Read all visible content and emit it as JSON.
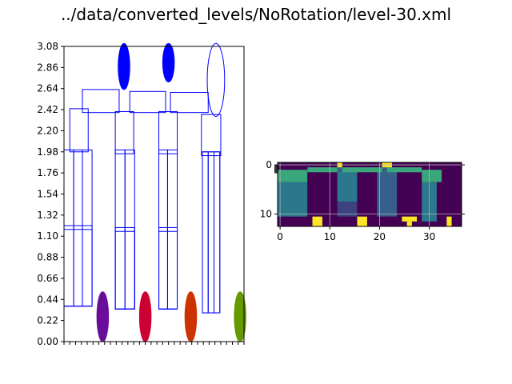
{
  "title": "../data/converted_levels/NoRotation/level-30.xml",
  "chart_data": [
    {
      "type": "scatter",
      "subtype": "level-layout",
      "title": "",
      "xlabel": "",
      "ylabel": "",
      "xlim": [
        0,
        1.86
      ],
      "ylim": [
        0,
        3.08
      ],
      "grid": false,
      "ytick_labels": [
        "0.00",
        "0.22",
        "0.44",
        "0.66",
        "0.88",
        "1.10",
        "1.32",
        "1.54",
        "1.76",
        "1.98",
        "2.20",
        "2.42",
        "2.64",
        "2.86",
        "3.08"
      ],
      "xtick_note": "x tick labels overlap and are illegible",
      "rectangles": [
        {
          "x0": 0.0,
          "y0": 0.37,
          "x1": 0.29,
          "y1": 1.21
        },
        {
          "x0": 0.0,
          "y0": 0.37,
          "x1": 0.29,
          "y1": 1.17
        },
        {
          "x0": 0.0,
          "y0": 0.37,
          "x1": 0.1,
          "y1": 2.0
        },
        {
          "x0": 0.1,
          "y0": 0.37,
          "x1": 0.19,
          "y1": 2.0
        },
        {
          "x0": 0.19,
          "y0": 0.37,
          "x1": 0.29,
          "y1": 2.0
        },
        {
          "x0": 0.06,
          "y0": 1.98,
          "x1": 0.25,
          "y1": 2.43
        },
        {
          "x0": 0.19,
          "y0": 2.39,
          "x1": 0.57,
          "y1": 2.63
        },
        {
          "x0": 0.53,
          "y0": 0.34,
          "x1": 0.73,
          "y1": 1.19
        },
        {
          "x0": 0.53,
          "y0": 0.34,
          "x1": 0.73,
          "y1": 1.15
        },
        {
          "x0": 0.53,
          "y0": 0.34,
          "x1": 0.63,
          "y1": 2.0
        },
        {
          "x0": 0.63,
          "y0": 0.34,
          "x1": 0.73,
          "y1": 2.0
        },
        {
          "x0": 0.53,
          "y0": 1.96,
          "x1": 0.72,
          "y1": 2.4
        },
        {
          "x0": 0.68,
          "y0": 2.39,
          "x1": 1.05,
          "y1": 2.61
        },
        {
          "x0": 0.98,
          "y0": 0.34,
          "x1": 1.17,
          "y1": 1.19
        },
        {
          "x0": 0.98,
          "y0": 0.34,
          "x1": 1.17,
          "y1": 1.15
        },
        {
          "x0": 0.98,
          "y0": 0.34,
          "x1": 1.07,
          "y1": 2.0
        },
        {
          "x0": 1.07,
          "y0": 0.34,
          "x1": 1.17,
          "y1": 2.0
        },
        {
          "x0": 0.98,
          "y0": 1.96,
          "x1": 1.17,
          "y1": 2.4
        },
        {
          "x0": 1.1,
          "y0": 2.39,
          "x1": 1.49,
          "y1": 2.6
        },
        {
          "x0": 1.43,
          "y0": 0.3,
          "x1": 1.61,
          "y1": 1.98
        },
        {
          "x0": 1.43,
          "y0": 0.3,
          "x1": 1.49,
          "y1": 1.98
        },
        {
          "x0": 1.49,
          "y0": 0.3,
          "x1": 1.55,
          "y1": 1.98
        },
        {
          "x0": 1.55,
          "y0": 0.3,
          "x1": 1.61,
          "y1": 1.98
        },
        {
          "x0": 1.42,
          "y0": 1.94,
          "x1": 1.62,
          "y1": 2.37
        }
      ],
      "ellipses": [
        {
          "cx": 0.62,
          "cy": 2.87,
          "rx": 0.06,
          "ry": 0.24,
          "color": "#0000ff",
          "filled": true
        },
        {
          "cx": 1.08,
          "cy": 2.91,
          "rx": 0.06,
          "ry": 0.2,
          "color": "#0000ff",
          "filled": true
        },
        {
          "cx": 1.57,
          "cy": 2.73,
          "rx": 0.09,
          "ry": 0.38,
          "color": "#0000ff",
          "filled": false
        },
        {
          "cx": 0.4,
          "cy": 0.26,
          "rx": 0.06,
          "ry": 0.26,
          "color": "#6a0d9a",
          "filled": true
        },
        {
          "cx": 0.84,
          "cy": 0.26,
          "rx": 0.06,
          "ry": 0.26,
          "color": "#cc0033",
          "filled": true
        },
        {
          "cx": 1.31,
          "cy": 0.26,
          "rx": 0.06,
          "ry": 0.26,
          "color": "#cc3300",
          "filled": true
        },
        {
          "cx": 1.82,
          "cy": 0.26,
          "rx": 0.06,
          "ry": 0.26,
          "color": "#669900",
          "filled": true
        }
      ]
    },
    {
      "type": "heatmap",
      "title": "",
      "xlabel": "",
      "ylabel": "",
      "xlim": [
        -0.5,
        36.5
      ],
      "ylim": [
        12.5,
        -0.5
      ],
      "xtick_labels": [
        "0",
        "10",
        "20",
        "30"
      ],
      "ytick_labels": [
        "0",
        "10"
      ],
      "ytick_note": "crowded overlapping labels near the top row",
      "grid": true,
      "colormap": "viridis",
      "blocks": [
        {
          "x0": -0.5,
          "x1": 36.5,
          "y0": -0.5,
          "y1": 12.5,
          "value": 0.0
        },
        {
          "x0": -0.5,
          "x1": 5.5,
          "y0": 3.5,
          "y1": 10.5,
          "value": 0.4
        },
        {
          "x0": -0.5,
          "x1": 5.5,
          "y0": 1.0,
          "y1": 3.5,
          "value": 0.6
        },
        {
          "x0": 5.5,
          "x1": 9.5,
          "y0": 1.0,
          "y1": 10.5,
          "value": 0.0
        },
        {
          "x0": 9.5,
          "x1": 11.5,
          "y0": 1.0,
          "y1": 10.5,
          "value": 0.0
        },
        {
          "x0": 11.5,
          "x1": 15.5,
          "y0": 1.0,
          "y1": 7.5,
          "value": 0.4
        },
        {
          "x0": 11.5,
          "x1": 15.5,
          "y0": 7.5,
          "y1": 10.5,
          "value": 0.2
        },
        {
          "x0": 15.5,
          "x1": 19.5,
          "y0": 1.0,
          "y1": 10.5,
          "value": 0.0
        },
        {
          "x0": 19.5,
          "x1": 23.5,
          "y0": 1.0,
          "y1": 10.5,
          "value": 0.3
        },
        {
          "x0": 23.5,
          "x1": 28.5,
          "y0": 1.0,
          "y1": 10.5,
          "value": 0.0
        },
        {
          "x0": 28.5,
          "x1": 31.5,
          "y0": 3.5,
          "y1": 11.5,
          "value": 0.4
        },
        {
          "x0": 28.5,
          "x1": 32.5,
          "y0": 1.0,
          "y1": 3.5,
          "value": 0.6
        },
        {
          "x0": 32.5,
          "x1": 36.5,
          "y0": 1.0,
          "y1": 10.5,
          "value": 0.0
        },
        {
          "x0": 5.5,
          "x1": 28.5,
          "y0": 0.5,
          "y1": 1.5,
          "value": 0.6
        },
        {
          "x0": 11.5,
          "x1": 12.5,
          "y0": 0.5,
          "y1": 1.5,
          "value": 0.3
        },
        {
          "x0": 20.5,
          "x1": 21.5,
          "y0": 0.5,
          "y1": 1.5,
          "value": 0.3
        },
        {
          "x0": 11.5,
          "x1": 12.5,
          "y0": -0.5,
          "y1": 0.5,
          "value": 1.0
        },
        {
          "x0": 20.5,
          "x1": 22.5,
          "y0": -0.5,
          "y1": 0.5,
          "value": 1.0
        },
        {
          "x0": 6.5,
          "x1": 8.5,
          "y0": 10.5,
          "y1": 12.5,
          "value": 1.0
        },
        {
          "x0": 15.5,
          "x1": 17.5,
          "y0": 10.5,
          "y1": 12.5,
          "value": 1.0
        },
        {
          "x0": 24.5,
          "x1": 27.5,
          "y0": 10.5,
          "y1": 11.5,
          "value": 1.0
        },
        {
          "x0": 25.5,
          "x1": 26.5,
          "y0": 11.5,
          "y1": 12.5,
          "value": 1.0
        },
        {
          "x0": 33.5,
          "x1": 34.5,
          "y0": 10.5,
          "y1": 12.5,
          "value": 1.0
        }
      ]
    }
  ]
}
